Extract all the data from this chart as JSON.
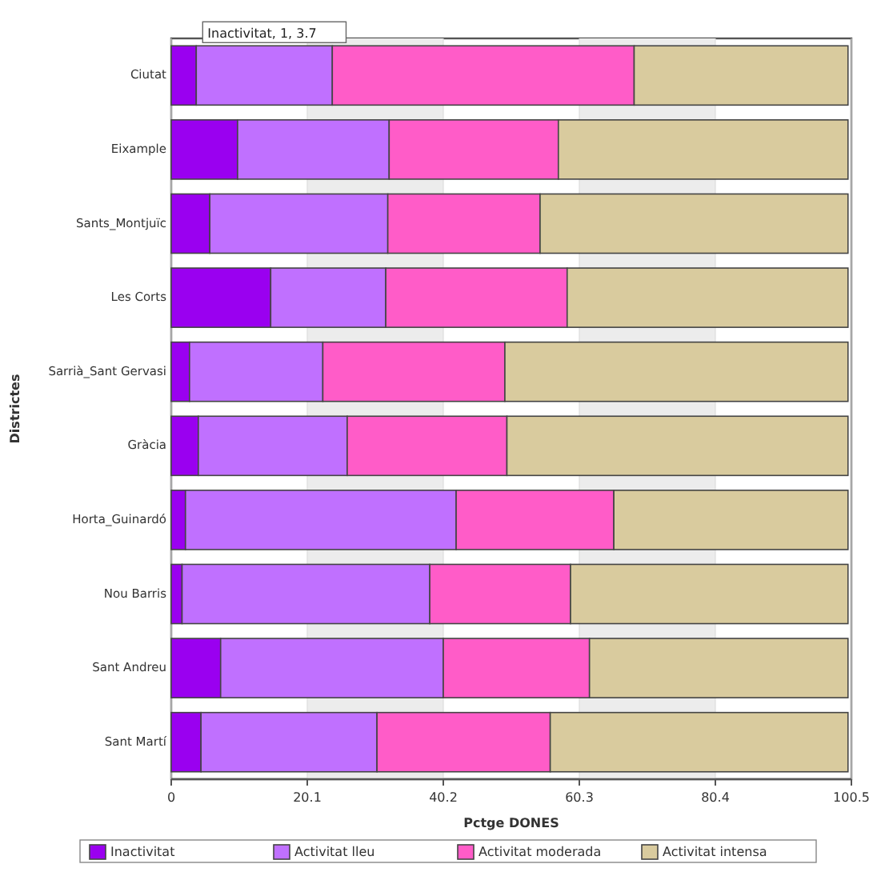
{
  "chart_data": {
    "type": "bar",
    "orientation": "horizontal",
    "stacked": true,
    "xlabel": "Pctge DONES",
    "ylabel": "Districtes",
    "categories": [
      "Ciutat",
      "Eixample",
      "Sants_Montjuïc",
      "Les Corts",
      "Sarrià_Sant Gervasi",
      "Gràcia",
      "Horta_Guinardó",
      "Nou Barris",
      "Sant Andreu",
      "Sant Martí"
    ],
    "series": [
      {
        "name": "Inactivitat",
        "color": "#9a00f0",
        "values": [
          3.7,
          9.8,
          5.7,
          14.7,
          2.7,
          4.0,
          2.1,
          1.6,
          7.3,
          4.4
        ]
      },
      {
        "name": "Activitat lleu",
        "color": "#c070ff",
        "values": [
          20.1,
          22.4,
          26.3,
          17.0,
          19.7,
          22.0,
          40.0,
          36.6,
          32.9,
          26.0
        ]
      },
      {
        "name": "Activitat moderada",
        "color": "#ff5cc8",
        "values": [
          44.6,
          25.0,
          22.5,
          26.8,
          26.9,
          23.6,
          23.3,
          20.8,
          21.6,
          25.6
        ]
      },
      {
        "name": "Activitat intensa",
        "color": "#d9cb9e",
        "values": [
          31.6,
          42.8,
          45.5,
          41.5,
          50.7,
          50.4,
          34.6,
          41.0,
          38.2,
          44.0
        ]
      }
    ],
    "xlim": [
      0,
      100.5
    ],
    "xticks": [
      0,
      20.1,
      40.2,
      60.3,
      80.4,
      100.5
    ],
    "grid": "x",
    "legend": "bottom",
    "annotations": [
      {
        "text": "Inactivitat, 1, 3.7",
        "x": 3.7,
        "y": "Ciutat"
      }
    ]
  }
}
